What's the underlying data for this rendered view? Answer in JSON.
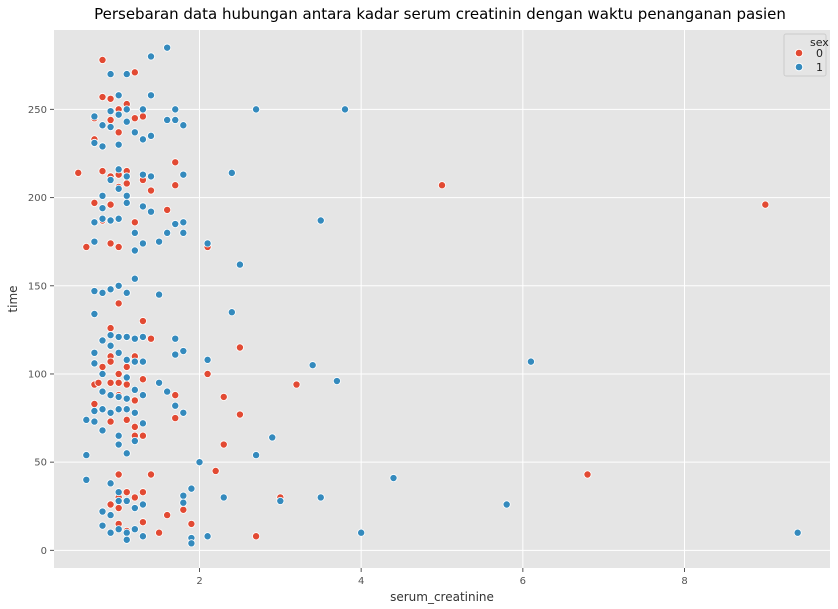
{
  "chart_data": {
    "type": "scatter",
    "title": "Persebaran data hubungan antara kadar serum creatinin dengan waktu penanganan pasien",
    "xlabel": "serum_creatinine",
    "ylabel": "time",
    "xlim": [
      0.2,
      9.8
    ],
    "ylim": [
      -10,
      295
    ],
    "xticks": [
      2,
      4,
      6,
      8
    ],
    "yticks": [
      0,
      50,
      100,
      150,
      200,
      250
    ],
    "grid": true,
    "legend": {
      "title": "sex",
      "placement": "top-right"
    },
    "series": [
      {
        "name": "0",
        "color": "#e24a33",
        "points": [
          [
            0.5,
            214
          ],
          [
            0.6,
            172
          ],
          [
            0.7,
            245
          ],
          [
            0.7,
            233
          ],
          [
            0.7,
            197
          ],
          [
            0.7,
            94
          ],
          [
            0.7,
            83
          ],
          [
            0.75,
            95
          ],
          [
            0.8,
            278
          ],
          [
            0.8,
            257
          ],
          [
            0.8,
            215
          ],
          [
            0.8,
            187
          ],
          [
            0.8,
            104
          ],
          [
            0.8,
            80
          ],
          [
            0.9,
            256
          ],
          [
            0.9,
            244
          ],
          [
            0.9,
            212
          ],
          [
            0.9,
            196
          ],
          [
            0.9,
            174
          ],
          [
            0.9,
            126
          ],
          [
            0.9,
            110
          ],
          [
            0.9,
            107
          ],
          [
            0.9,
            95
          ],
          [
            0.9,
            73
          ],
          [
            0.9,
            26
          ],
          [
            1.0,
            250
          ],
          [
            1.0,
            237
          ],
          [
            1.0,
            213
          ],
          [
            1.0,
            206
          ],
          [
            1.0,
            172
          ],
          [
            1.0,
            140
          ],
          [
            1.0,
            100
          ],
          [
            1.0,
            95
          ],
          [
            1.0,
            88
          ],
          [
            1.0,
            43
          ],
          [
            1.0,
            30
          ],
          [
            1.0,
            24
          ],
          [
            1.0,
            15
          ],
          [
            1.1,
            253
          ],
          [
            1.1,
            215
          ],
          [
            1.1,
            208
          ],
          [
            1.1,
            104
          ],
          [
            1.1,
            94
          ],
          [
            1.1,
            74
          ],
          [
            1.1,
            33
          ],
          [
            1.1,
            11
          ],
          [
            1.2,
            271
          ],
          [
            1.2,
            245
          ],
          [
            1.2,
            186
          ],
          [
            1.2,
            110
          ],
          [
            1.2,
            85
          ],
          [
            1.2,
            70
          ],
          [
            1.2,
            65
          ],
          [
            1.2,
            30
          ],
          [
            1.3,
            246
          ],
          [
            1.3,
            210
          ],
          [
            1.3,
            130
          ],
          [
            1.3,
            97
          ],
          [
            1.3,
            65
          ],
          [
            1.3,
            33
          ],
          [
            1.3,
            16
          ],
          [
            1.4,
            204
          ],
          [
            1.4,
            120
          ],
          [
            1.4,
            43
          ],
          [
            1.5,
            10
          ],
          [
            1.6,
            193
          ],
          [
            1.6,
            20
          ],
          [
            1.7,
            220
          ],
          [
            1.7,
            207
          ],
          [
            1.7,
            88
          ],
          [
            1.7,
            75
          ],
          [
            1.8,
            23
          ],
          [
            1.9,
            15
          ],
          [
            2.1,
            172
          ],
          [
            2.1,
            100
          ],
          [
            2.2,
            45
          ],
          [
            2.3,
            87
          ],
          [
            2.3,
            60
          ],
          [
            2.5,
            115
          ],
          [
            2.5,
            77
          ],
          [
            2.7,
            8
          ],
          [
            3.0,
            30
          ],
          [
            3.2,
            94
          ],
          [
            5.0,
            207
          ],
          [
            6.8,
            43
          ],
          [
            9.0,
            196
          ]
        ]
      },
      {
        "name": "1",
        "color": "#348abd",
        "points": [
          [
            0.6,
            74
          ],
          [
            0.6,
            54
          ],
          [
            0.6,
            40
          ],
          [
            0.7,
            246
          ],
          [
            0.7,
            231
          ],
          [
            0.7,
            186
          ],
          [
            0.7,
            175
          ],
          [
            0.7,
            147
          ],
          [
            0.7,
            134
          ],
          [
            0.7,
            112
          ],
          [
            0.7,
            106
          ],
          [
            0.7,
            79
          ],
          [
            0.7,
            73
          ],
          [
            0.8,
            241
          ],
          [
            0.8,
            229
          ],
          [
            0.8,
            201
          ],
          [
            0.8,
            194
          ],
          [
            0.8,
            188
          ],
          [
            0.8,
            146
          ],
          [
            0.8,
            119
          ],
          [
            0.8,
            100
          ],
          [
            0.8,
            90
          ],
          [
            0.8,
            80
          ],
          [
            0.8,
            68
          ],
          [
            0.8,
            22
          ],
          [
            0.8,
            14
          ],
          [
            0.9,
            270
          ],
          [
            0.9,
            249
          ],
          [
            0.9,
            240
          ],
          [
            0.9,
            210
          ],
          [
            0.9,
            187
          ],
          [
            0.9,
            148
          ],
          [
            0.9,
            122
          ],
          [
            0.9,
            116
          ],
          [
            0.9,
            88
          ],
          [
            0.9,
            78
          ],
          [
            0.9,
            38
          ],
          [
            0.9,
            20
          ],
          [
            0.9,
            10
          ],
          [
            1.0,
            258
          ],
          [
            1.0,
            247
          ],
          [
            1.0,
            230
          ],
          [
            1.0,
            216
          ],
          [
            1.0,
            205
          ],
          [
            1.0,
            188
          ],
          [
            1.0,
            150
          ],
          [
            1.0,
            121
          ],
          [
            1.0,
            112
          ],
          [
            1.0,
            87
          ],
          [
            1.0,
            80
          ],
          [
            1.0,
            65
          ],
          [
            1.0,
            60
          ],
          [
            1.0,
            33
          ],
          [
            1.0,
            28
          ],
          [
            1.0,
            12
          ],
          [
            1.1,
            270
          ],
          [
            1.1,
            250
          ],
          [
            1.1,
            243
          ],
          [
            1.1,
            212
          ],
          [
            1.1,
            201
          ],
          [
            1.1,
            197
          ],
          [
            1.1,
            146
          ],
          [
            1.1,
            121
          ],
          [
            1.1,
            108
          ],
          [
            1.1,
            98
          ],
          [
            1.1,
            86
          ],
          [
            1.1,
            80
          ],
          [
            1.1,
            55
          ],
          [
            1.1,
            28
          ],
          [
            1.1,
            10
          ],
          [
            1.1,
            6
          ],
          [
            1.2,
            237
          ],
          [
            1.2,
            180
          ],
          [
            1.2,
            170
          ],
          [
            1.2,
            154
          ],
          [
            1.2,
            120
          ],
          [
            1.2,
            107
          ],
          [
            1.2,
            91
          ],
          [
            1.2,
            78
          ],
          [
            1.2,
            62
          ],
          [
            1.2,
            24
          ],
          [
            1.2,
            12
          ],
          [
            1.3,
            250
          ],
          [
            1.3,
            233
          ],
          [
            1.3,
            213
          ],
          [
            1.3,
            195
          ],
          [
            1.3,
            174
          ],
          [
            1.3,
            121
          ],
          [
            1.3,
            107
          ],
          [
            1.3,
            88
          ],
          [
            1.3,
            72
          ],
          [
            1.3,
            26
          ],
          [
            1.3,
            8
          ],
          [
            1.4,
            280
          ],
          [
            1.4,
            258
          ],
          [
            1.4,
            235
          ],
          [
            1.4,
            212
          ],
          [
            1.4,
            192
          ],
          [
            1.5,
            175
          ],
          [
            1.5,
            145
          ],
          [
            1.5,
            95
          ],
          [
            1.6,
            285
          ],
          [
            1.6,
            244
          ],
          [
            1.6,
            180
          ],
          [
            1.6,
            90
          ],
          [
            1.7,
            250
          ],
          [
            1.7,
            244
          ],
          [
            1.7,
            185
          ],
          [
            1.7,
            120
          ],
          [
            1.7,
            111
          ],
          [
            1.7,
            82
          ],
          [
            1.8,
            241
          ],
          [
            1.8,
            213
          ],
          [
            1.8,
            186
          ],
          [
            1.8,
            180
          ],
          [
            1.8,
            113
          ],
          [
            1.8,
            78
          ],
          [
            1.8,
            31
          ],
          [
            1.8,
            27
          ],
          [
            1.9,
            35
          ],
          [
            1.9,
            7
          ],
          [
            1.9,
            4
          ],
          [
            2.0,
            50
          ],
          [
            2.1,
            174
          ],
          [
            2.1,
            108
          ],
          [
            2.1,
            8
          ],
          [
            2.3,
            30
          ],
          [
            2.4,
            214
          ],
          [
            2.4,
            135
          ],
          [
            2.5,
            162
          ],
          [
            2.7,
            250
          ],
          [
            2.7,
            54
          ],
          [
            2.9,
            64
          ],
          [
            3.0,
            28
          ],
          [
            3.4,
            105
          ],
          [
            3.5,
            187
          ],
          [
            3.5,
            30
          ],
          [
            3.7,
            96
          ],
          [
            3.8,
            250
          ],
          [
            4.0,
            10
          ],
          [
            4.4,
            41
          ],
          [
            5.8,
            26
          ],
          [
            6.1,
            107
          ],
          [
            9.4,
            10
          ]
        ]
      }
    ]
  }
}
